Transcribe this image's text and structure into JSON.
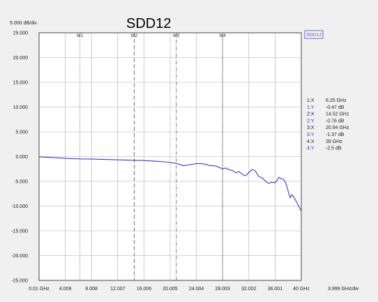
{
  "colors": {
    "trace": "#2222dd",
    "grid": "#aaaaaa",
    "plot_bg": "#ffffff",
    "marker": "#666666",
    "readout_y": "#3333cc"
  },
  "chart_data": {
    "type": "line",
    "title": "SDD12",
    "scale_label": "5.000 dB/div",
    "x_div_label": "3.999 GHz/div",
    "legend": "SDD12",
    "xlim": [
      0.01,
      40
    ],
    "ylim": [
      -25,
      25
    ],
    "x_tick_labels": [
      "0.01 GHz",
      "4.009",
      "8.008",
      "12.007",
      "16.006",
      "20.005",
      "24.004",
      "28.003",
      "32.002",
      "36.001",
      "40 GHz"
    ],
    "y_tick_labels": [
      "25.000",
      "20.000",
      "15.000",
      "10.000",
      "5.000",
      "0.000",
      "-5.000",
      "-10.000",
      "-15.000",
      "-20.000",
      "-25.000"
    ],
    "markers": [
      {
        "name": "M1",
        "x": 6.25,
        "y": -0.47
      },
      {
        "name": "M2",
        "x": 14.52,
        "y": -0.76
      },
      {
        "name": "M3",
        "x": 20.94,
        "y": -1.37
      },
      {
        "name": "M4",
        "x": 28,
        "y": -2.5
      }
    ],
    "readout": [
      {
        "label": "1:X",
        "value": "6.25 GHz",
        "axis": "x"
      },
      {
        "label": "1:Y",
        "value": "-0.47 dB",
        "axis": "y"
      },
      {
        "label": "2:X",
        "value": "14.52 GHz",
        "axis": "x"
      },
      {
        "label": "2:Y",
        "value": "-0.76 dB",
        "axis": "y"
      },
      {
        "label": "3:X",
        "value": "20.94 GHz",
        "axis": "x"
      },
      {
        "label": "3:Y",
        "value": "-1.37 dB",
        "axis": "y"
      },
      {
        "label": "4:X",
        "value": "28 GHz",
        "axis": "x"
      },
      {
        "label": "4:Y",
        "value": "-2.5 dB",
        "axis": "y"
      }
    ],
    "series": [
      {
        "x": [
          0.01,
          2,
          4,
          6.25,
          8,
          10,
          12,
          14.52,
          16,
          18,
          19.5,
          20.94,
          21.5,
          22,
          23,
          24,
          25,
          26,
          27,
          28,
          28.5,
          29,
          29.5,
          30,
          30.5,
          31,
          31.5,
          32,
          32.5,
          33,
          33.5,
          34,
          34.5,
          35,
          35.5,
          36,
          36.3,
          36.6,
          37,
          37.3,
          37.6,
          38,
          38.3,
          38.6,
          39,
          39.3,
          39.6,
          40
        ],
        "y": [
          -0.05,
          -0.2,
          -0.35,
          -0.47,
          -0.5,
          -0.58,
          -0.65,
          -0.76,
          -0.8,
          -0.95,
          -1.1,
          -1.37,
          -1.6,
          -1.85,
          -1.65,
          -1.4,
          -1.45,
          -1.8,
          -1.9,
          -2.5,
          -2.3,
          -2.7,
          -2.8,
          -3.3,
          -3.0,
          -3.6,
          -3.9,
          -3.2,
          -2.6,
          -2.9,
          -4.0,
          -4.3,
          -4.9,
          -5.4,
          -5.2,
          -5.3,
          -4.8,
          -4.2,
          -4.5,
          -4.6,
          -5.2,
          -7.0,
          -8.3,
          -7.7,
          -8.5,
          -9.2,
          -10.0,
          -11.0
        ]
      }
    ]
  }
}
